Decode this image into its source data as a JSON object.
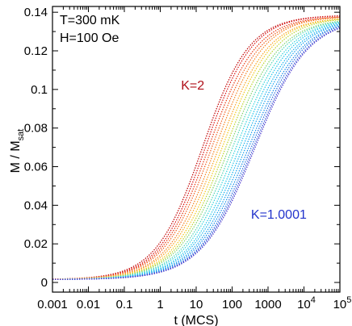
{
  "chart_data": {
    "type": "line",
    "xscale": "log",
    "xlim": [
      0.001,
      100000
    ],
    "ylim": [
      -0.005,
      0.143
    ],
    "x_ticks": [
      0.001,
      0.01,
      0.1,
      1,
      10,
      100,
      1000,
      10000,
      100000
    ],
    "x_tick_labels": [
      {
        "base": "0.001",
        "exp": ""
      },
      {
        "base": "0.01",
        "exp": ""
      },
      {
        "base": "0.1",
        "exp": ""
      },
      {
        "base": "1",
        "exp": ""
      },
      {
        "base": "10",
        "exp": ""
      },
      {
        "base": "100",
        "exp": ""
      },
      {
        "base": "1000",
        "exp": ""
      },
      {
        "base": "10",
        "exp": "4"
      },
      {
        "base": "10",
        "exp": "5"
      }
    ],
    "y_ticks": [
      0,
      0.02,
      0.04,
      0.06,
      0.08,
      0.1,
      0.12,
      0.14
    ],
    "y_tick_labels": [
      "0",
      "0.02",
      "0.04",
      "0.06",
      "0.08",
      "0.1",
      "0.12",
      "0.14"
    ],
    "xlabel": "t (MCS)",
    "ylabel": {
      "main": "M / M",
      "sub": "sat"
    },
    "text_annotations": [
      "T=300 mK",
      "H=100 Oe"
    ],
    "curve_labels": [
      {
        "text": "K=2",
        "color": "#b0101a",
        "anchor_x": 8,
        "anchor_y": 0.1
      },
      {
        "text": "K=1.0001",
        "color": "#2233cc",
        "anchor_x": 2000,
        "anchor_y": 0.033
      }
    ],
    "series": [
      {
        "color": "#c00000",
        "m0": 0.0015,
        "ms": 0.1385,
        "t_half": 15,
        "width": 0.65
      },
      {
        "color": "#d81010",
        "m0": 0.0015,
        "ms": 0.1385,
        "t_half": 18,
        "width": 0.65
      },
      {
        "color": "#e83a14",
        "m0": 0.0015,
        "ms": 0.138,
        "t_half": 22,
        "width": 0.66
      },
      {
        "color": "#f06020",
        "m0": 0.0015,
        "ms": 0.138,
        "t_half": 27,
        "width": 0.67
      },
      {
        "color": "#f5821f",
        "m0": 0.0015,
        "ms": 0.138,
        "t_half": 34,
        "width": 0.67
      },
      {
        "color": "#f9a21c",
        "m0": 0.0015,
        "ms": 0.1375,
        "t_half": 42,
        "width": 0.68
      },
      {
        "color": "#f2c81a",
        "m0": 0.0015,
        "ms": 0.1375,
        "t_half": 52,
        "width": 0.68
      },
      {
        "color": "#bcd42a",
        "m0": 0.0015,
        "ms": 0.1375,
        "t_half": 65,
        "width": 0.69
      },
      {
        "color": "#7fd36a",
        "m0": 0.0015,
        "ms": 0.137,
        "t_half": 80,
        "width": 0.7
      },
      {
        "color": "#4fd6b4",
        "m0": 0.0015,
        "ms": 0.137,
        "t_half": 100,
        "width": 0.7
      },
      {
        "color": "#32d4dc",
        "m0": 0.0015,
        "ms": 0.137,
        "t_half": 125,
        "width": 0.71
      },
      {
        "color": "#22c6ea",
        "m0": 0.0015,
        "ms": 0.137,
        "t_half": 155,
        "width": 0.71
      },
      {
        "color": "#1ab4ee",
        "m0": 0.0015,
        "ms": 0.137,
        "t_half": 190,
        "width": 0.72
      },
      {
        "color": "#17a2ef",
        "m0": 0.0015,
        "ms": 0.137,
        "t_half": 230,
        "width": 0.72
      },
      {
        "color": "#178ee8",
        "m0": 0.0015,
        "ms": 0.137,
        "t_half": 280,
        "width": 0.73
      },
      {
        "color": "#2b6ee0",
        "m0": 0.0015,
        "ms": 0.137,
        "t_half": 330,
        "width": 0.73
      },
      {
        "color": "#3452d8",
        "m0": 0.0015,
        "ms": 0.137,
        "t_half": 380,
        "width": 0.74
      },
      {
        "color": "#4a38cc",
        "m0": 0.0015,
        "ms": 0.137,
        "t_half": 420,
        "width": 0.74
      }
    ]
  }
}
